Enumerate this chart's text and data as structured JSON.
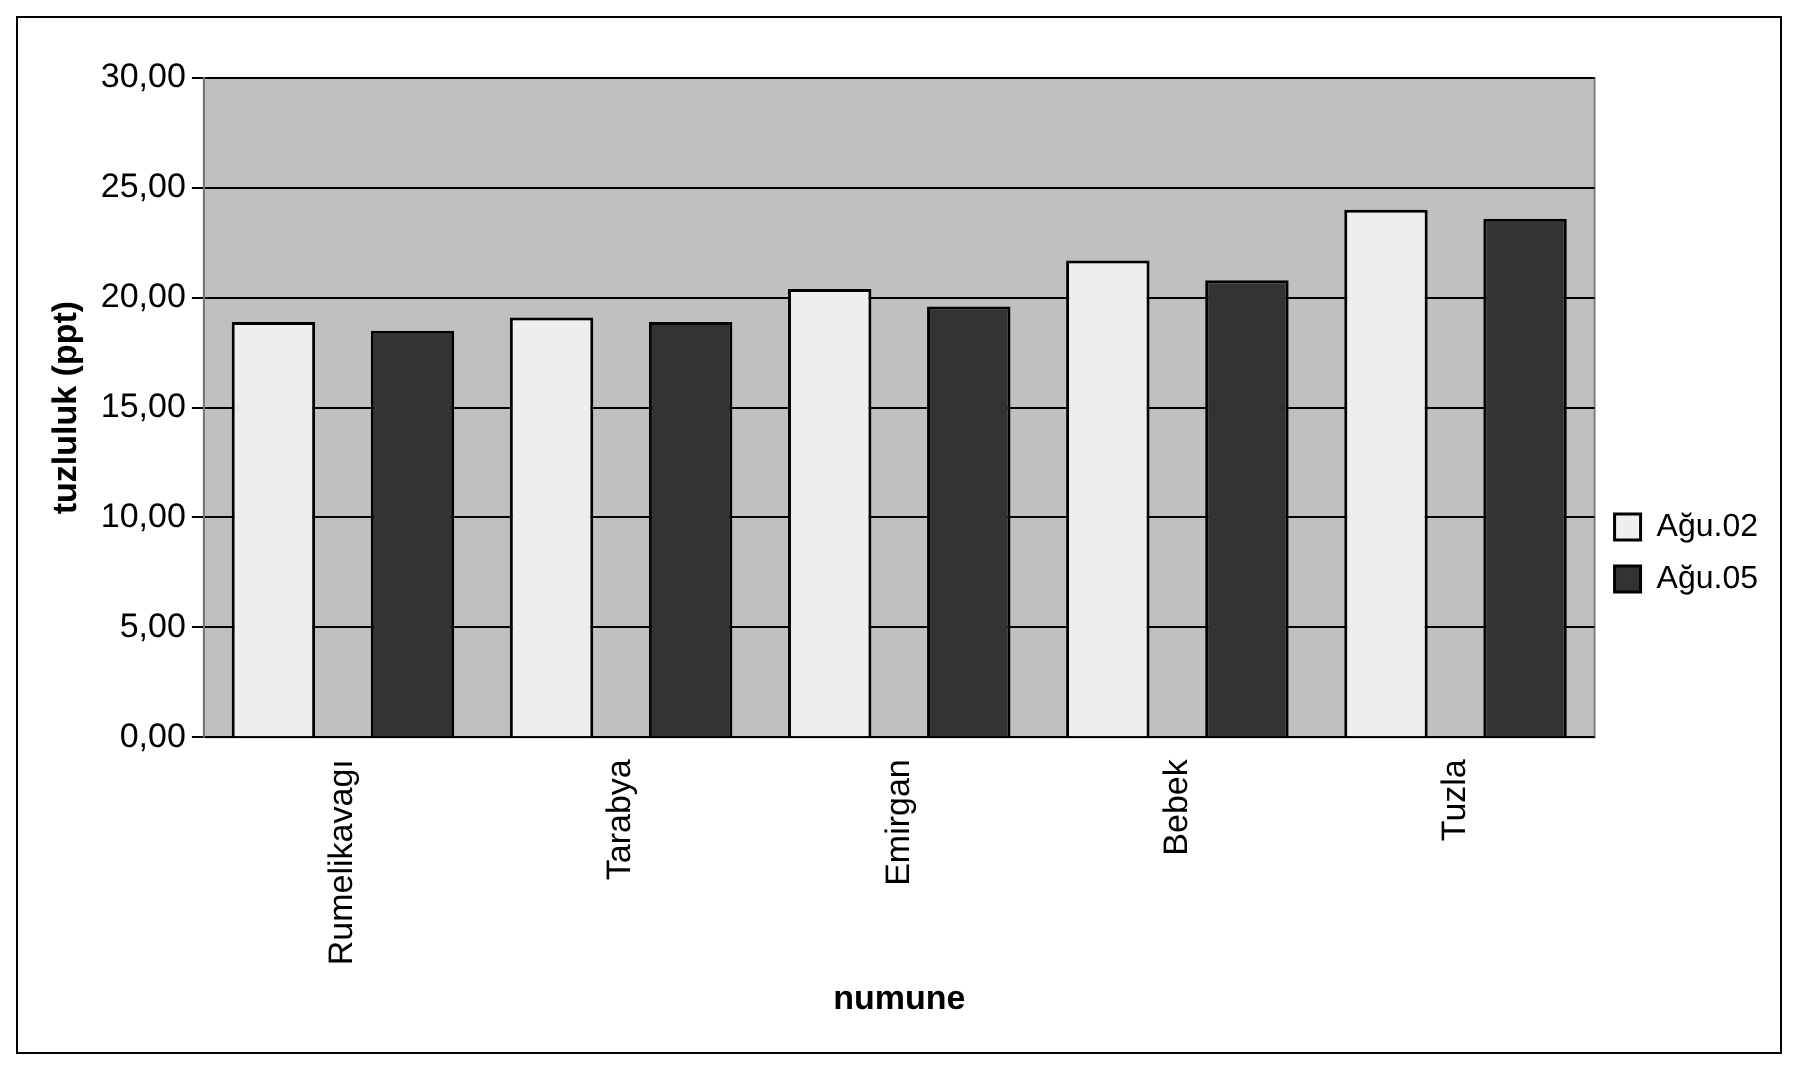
{
  "chart_data": {
    "type": "bar",
    "xlabel": "numune",
    "ylabel": "tuzluluk (ppt)",
    "categories": [
      "Rumelikavagı",
      "Tarabya",
      "Emirgan",
      "Bebek",
      "Tuzla"
    ],
    "series": [
      {
        "name": "Ağu.02",
        "color": "#eeeeee",
        "values": [
          18.9,
          19.1,
          20.4,
          21.7,
          24.0
        ]
      },
      {
        "name": "Ağu.05",
        "color": "#333333",
        "values": [
          18.5,
          18.9,
          19.6,
          20.8,
          23.6
        ]
      }
    ],
    "ylim": [
      0,
      30
    ],
    "yticks": [
      {
        "value": 0,
        "label": "0,00"
      },
      {
        "value": 5,
        "label": "5,00"
      },
      {
        "value": 10,
        "label": "10,00"
      },
      {
        "value": 15,
        "label": "15,00"
      },
      {
        "value": 20,
        "label": "20,00"
      },
      {
        "value": 25,
        "label": "25,00"
      },
      {
        "value": 30,
        "label": "30,00"
      }
    ],
    "grid": "y",
    "legend": "right"
  }
}
